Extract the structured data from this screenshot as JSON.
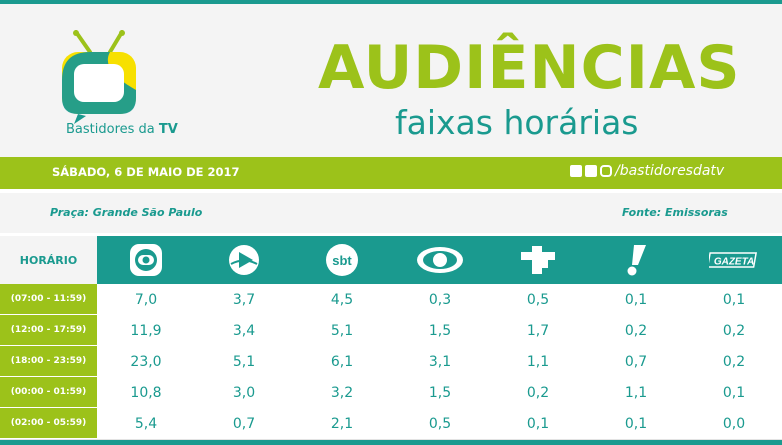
{
  "header": {
    "logo_text": "Bastidores da ",
    "logo_text_bold": "TV",
    "title": "AUDIÊNCIAS",
    "subtitle": "faixas horárias"
  },
  "bar": {
    "date": "SÁBADO, 6 DE MAIO DE 2017",
    "social_handle": "/bastidoresdatv"
  },
  "source": {
    "praca": "Praça: Grande São Paulo",
    "fonte": "Fonte: Emissoras"
  },
  "table": {
    "row_header": "HORÁRIO",
    "channels": [
      "globo-logo-icon",
      "record-logo-icon",
      "sbt-logo-icon",
      "band-logo-icon",
      "redetv-logo-icon",
      "tvcultura-logo-icon",
      "gazeta-logo-icon"
    ],
    "channel_text": {
      "sbt": "sbt",
      "gazeta": "GAZETA"
    },
    "rows": [
      {
        "label": "(07:00 - 11:59)",
        "values": [
          "7,0",
          "3,7",
          "4,5",
          "0,3",
          "0,5",
          "0,1",
          "0,1"
        ]
      },
      {
        "label": "(12:00 - 17:59)",
        "values": [
          "11,9",
          "3,4",
          "5,1",
          "1,5",
          "1,7",
          "0,2",
          "0,2"
        ]
      },
      {
        "label": "(18:00 - 23:59)",
        "values": [
          "23,0",
          "5,1",
          "6,1",
          "3,1",
          "1,1",
          "0,7",
          "0,2"
        ]
      },
      {
        "label": "(00:00 - 01:59)",
        "values": [
          "10,8",
          "3,0",
          "3,2",
          "1,5",
          "0,2",
          "1,1",
          "0,1"
        ]
      },
      {
        "label": "(02:00 - 05:59)",
        "values": [
          "5,4",
          "0,7",
          "2,1",
          "0,5",
          "0,1",
          "0,1",
          "0,0"
        ]
      }
    ]
  },
  "colors": {
    "teal": "#1a9a8f",
    "green": "#9cc21a",
    "light": "#f4f4f4"
  }
}
